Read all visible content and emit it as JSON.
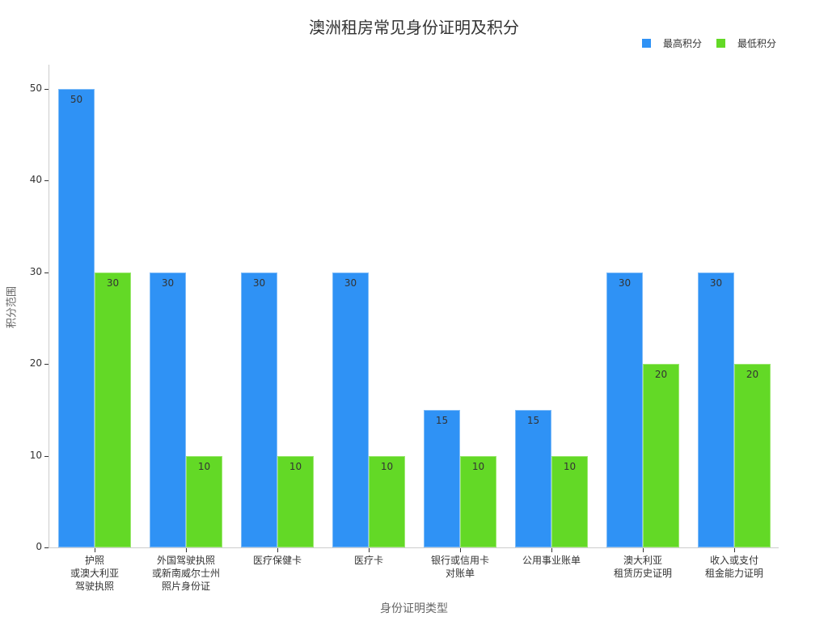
{
  "title": "澳洲租房常见身份证明及积分",
  "legend": [
    {
      "label": "最高积分",
      "color": "#2f92f5"
    },
    {
      "label": "最低积分",
      "color": "#63d926"
    }
  ],
  "axes": {
    "x_title": "身份证明类型",
    "y_title": "积分范围",
    "y_ticks": [
      "0",
      "10",
      "20",
      "30",
      "40",
      "50"
    ]
  },
  "chart_data": {
    "type": "bar",
    "title": "澳洲租房常见身份证明及积分",
    "xlabel": "身份证明类型",
    "ylabel": "积分范围",
    "ylim": [
      0,
      52.5
    ],
    "grid": false,
    "legend_position": "top-right",
    "categories": [
      "护照\n或澳大利亚\n驾驶执照",
      "外国驾驶执照\n或新南威尔士州\n照片身份证",
      "医疗保健卡",
      "医疗卡",
      "银行或信用卡\n对账单",
      "公用事业账单",
      "澳大利亚\n租赁历史证明",
      "收入或支付\n租金能力证明"
    ],
    "series": [
      {
        "name": "最高积分",
        "color": "#2f92f5",
        "values": [
          50,
          30,
          30,
          30,
          15,
          15,
          30,
          30
        ]
      },
      {
        "name": "最低积分",
        "color": "#63d926",
        "values": [
          30,
          10,
          10,
          10,
          10,
          10,
          20,
          20
        ]
      }
    ]
  }
}
